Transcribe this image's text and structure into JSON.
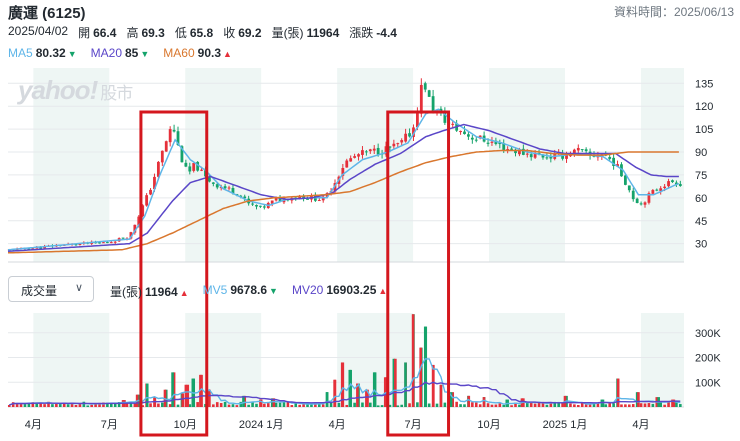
{
  "header": {
    "title": "廣運 (6125)",
    "updated_label": "資料時間：2025/06/13",
    "date": "2025/04/02",
    "stats": [
      {
        "label": "開",
        "value": "66.4"
      },
      {
        "label": "高",
        "value": "69.3"
      },
      {
        "label": "低",
        "value": "65.8"
      },
      {
        "label": "收",
        "value": "69.2"
      },
      {
        "label": "量(張)",
        "value": "11964"
      },
      {
        "label": "漲跌",
        "value": "-4.4"
      }
    ]
  },
  "price_legend": [
    {
      "name": "MA5",
      "value": "80.32",
      "dir": "down",
      "color": "#5eb5e8"
    },
    {
      "name": "MA20",
      "value": "85",
      "dir": "down",
      "color": "#5a46c8"
    },
    {
      "name": "MA60",
      "value": "90.3",
      "dir": "up",
      "color": "#d9772e"
    }
  ],
  "volume_legend": [
    {
      "name": "量(張)",
      "value": "11964",
      "dir": "up",
      "color": "#232a31"
    },
    {
      "name": "MV5",
      "value": "9678.6",
      "dir": "down",
      "color": "#5eb5e8"
    },
    {
      "name": "MV20",
      "value": "16903.25",
      "dir": "up",
      "color": "#5a46c8"
    }
  ],
  "selector": {
    "label": "成交量",
    "icon": "chevron-down-icon"
  },
  "watermark": {
    "brand": "yahoo!",
    "sub": "股市"
  },
  "chart_data": [
    {
      "type": "candlestick",
      "yaxis_ticks": [
        30,
        45,
        60,
        75,
        90,
        105,
        120,
        135
      ],
      "ylim": [
        18,
        145
      ],
      "xaxis_ticks": [
        "4月",
        "7月",
        "10月",
        "2024 1月",
        "4月",
        "7月",
        "10月",
        "2025 1月",
        "4月"
      ],
      "highlight_boxes": [
        {
          "from_month": 5.25,
          "to_month": 7.85
        },
        {
          "from_month": 15.0,
          "to_month": 17.4
        }
      ],
      "price_anchors": [
        [
          0,
          26
        ],
        [
          1,
          27
        ],
        [
          2,
          29
        ],
        [
          3,
          30
        ],
        [
          4,
          31
        ],
        [
          4.8,
          35
        ],
        [
          5.2,
          50
        ],
        [
          5.6,
          65
        ],
        [
          5.9,
          80
        ],
        [
          6.2,
          95
        ],
        [
          6.5,
          108
        ],
        [
          6.8,
          88
        ],
        [
          7.1,
          75
        ],
        [
          7.4,
          82
        ],
        [
          7.8,
          73
        ],
        [
          8.3,
          68
        ],
        [
          9.0,
          64
        ],
        [
          9.5,
          56
        ],
        [
          10.0,
          53
        ],
        [
          10.5,
          58
        ],
        [
          11.0,
          60
        ],
        [
          11.5,
          61
        ],
        [
          12.0,
          60
        ],
        [
          12.5,
          59
        ],
        [
          12.9,
          70
        ],
        [
          13.3,
          83
        ],
        [
          13.8,
          88
        ],
        [
          14.3,
          90
        ],
        [
          15.0,
          92
        ],
        [
          15.5,
          95
        ],
        [
          16.0,
          105
        ],
        [
          16.4,
          138
        ],
        [
          16.7,
          120
        ],
        [
          17.2,
          112
        ],
        [
          17.6,
          106
        ],
        [
          18.3,
          100
        ],
        [
          19.0,
          97
        ],
        [
          19.6,
          93
        ],
        [
          20.2,
          90
        ],
        [
          20.8,
          88
        ],
        [
          21.4,
          87
        ],
        [
          22.0,
          88
        ],
        [
          22.5,
          91
        ],
        [
          23.0,
          87
        ],
        [
          23.5,
          89
        ],
        [
          24.0,
          82
        ],
        [
          24.4,
          70
        ],
        [
          24.7,
          60
        ],
        [
          25.0,
          56
        ],
        [
          25.4,
          63
        ],
        [
          25.8,
          68
        ],
        [
          26.3,
          71
        ],
        [
          26.6,
          69
        ]
      ],
      "ma_anchors": {
        "MA5": [
          [
            0,
            26
          ],
          [
            4.8,
            33
          ],
          [
            5.4,
            48
          ],
          [
            6.0,
            75
          ],
          [
            6.6,
            98
          ],
          [
            7.2,
            85
          ],
          [
            7.8,
            78
          ],
          [
            8.5,
            66
          ],
          [
            9.5,
            58
          ],
          [
            10.3,
            55
          ],
          [
            11.0,
            59
          ],
          [
            12.0,
            60
          ],
          [
            12.6,
            60
          ],
          [
            13.2,
            75
          ],
          [
            14.0,
            85
          ],
          [
            15.0,
            90
          ],
          [
            15.8,
            96
          ],
          [
            16.5,
            115
          ],
          [
            17.0,
            118
          ],
          [
            17.6,
            110
          ],
          [
            18.5,
            100
          ],
          [
            19.5,
            96
          ],
          [
            20.5,
            90
          ],
          [
            21.5,
            87
          ],
          [
            22.5,
            89
          ],
          [
            23.5,
            87
          ],
          [
            24.3,
            78
          ],
          [
            24.9,
            62
          ],
          [
            25.5,
            62
          ],
          [
            26.3,
            68
          ],
          [
            26.6,
            70
          ]
        ],
        "MA20": [
          [
            0,
            25
          ],
          [
            4.8,
            30
          ],
          [
            5.5,
            37
          ],
          [
            6.5,
            58
          ],
          [
            7.2,
            70
          ],
          [
            8.0,
            74
          ],
          [
            9.0,
            68
          ],
          [
            10.0,
            62
          ],
          [
            11.0,
            59
          ],
          [
            12.0,
            60
          ],
          [
            12.8,
            63
          ],
          [
            13.5,
            72
          ],
          [
            14.5,
            82
          ],
          [
            15.5,
            89
          ],
          [
            16.5,
            100
          ],
          [
            17.2,
            104
          ],
          [
            18.0,
            108
          ],
          [
            19.0,
            104
          ],
          [
            20.0,
            98
          ],
          [
            21.0,
            92
          ],
          [
            22.0,
            89
          ],
          [
            23.0,
            89
          ],
          [
            24.0,
            89
          ],
          [
            24.8,
            80
          ],
          [
            25.4,
            75
          ],
          [
            26.0,
            74
          ],
          [
            26.6,
            74
          ]
        ],
        "MA60": [
          [
            0,
            24
          ],
          [
            4.5,
            26
          ],
          [
            5.5,
            30
          ],
          [
            6.5,
            37
          ],
          [
            7.5,
            45
          ],
          [
            8.5,
            53
          ],
          [
            9.5,
            58
          ],
          [
            10.5,
            60
          ],
          [
            11.5,
            61
          ],
          [
            12.5,
            62
          ],
          [
            13.5,
            64
          ],
          [
            14.5,
            70
          ],
          [
            15.5,
            77
          ],
          [
            16.5,
            83
          ],
          [
            17.5,
            87
          ],
          [
            18.5,
            90
          ],
          [
            19.5,
            91
          ],
          [
            20.5,
            91
          ],
          [
            21.5,
            89
          ],
          [
            22.5,
            88
          ],
          [
            23.5,
            88
          ],
          [
            24.5,
            90
          ],
          [
            25.5,
            90
          ],
          [
            26.6,
            90
          ]
        ]
      }
    },
    {
      "type": "bar",
      "yaxis_ticks": [
        "100K",
        "200K",
        "300K"
      ],
      "ylim": [
        0,
        380
      ],
      "bars_k": [
        [
          4.6,
          28
        ],
        [
          5.1,
          50
        ],
        [
          5.5,
          95
        ],
        [
          5.8,
          40
        ],
        [
          6.2,
          70
        ],
        [
          6.5,
          140
        ],
        [
          6.9,
          55
        ],
        [
          7.1,
          90
        ],
        [
          7.3,
          115
        ],
        [
          7.6,
          130
        ],
        [
          7.9,
          70
        ],
        [
          9.3,
          45
        ],
        [
          10.0,
          30
        ],
        [
          10.5,
          35
        ],
        [
          12.6,
          60
        ],
        [
          12.9,
          110
        ],
        [
          13.2,
          180
        ],
        [
          13.5,
          150
        ],
        [
          13.8,
          95
        ],
        [
          14.2,
          70
        ],
        [
          14.5,
          140
        ],
        [
          14.9,
          120
        ],
        [
          15.3,
          195
        ],
        [
          15.7,
          180
        ],
        [
          16.0,
          375
        ],
        [
          16.3,
          240
        ],
        [
          16.5,
          325
        ],
        [
          16.8,
          170
        ],
        [
          17.1,
          90
        ],
        [
          17.5,
          60
        ],
        [
          18.2,
          45
        ],
        [
          18.8,
          40
        ],
        [
          19.7,
          30
        ],
        [
          20.3,
          35
        ],
        [
          22.0,
          45
        ],
        [
          23.5,
          30
        ],
        [
          24.1,
          115
        ],
        [
          24.9,
          60
        ],
        [
          25.7,
          40
        ],
        [
          26.3,
          30
        ]
      ]
    }
  ]
}
